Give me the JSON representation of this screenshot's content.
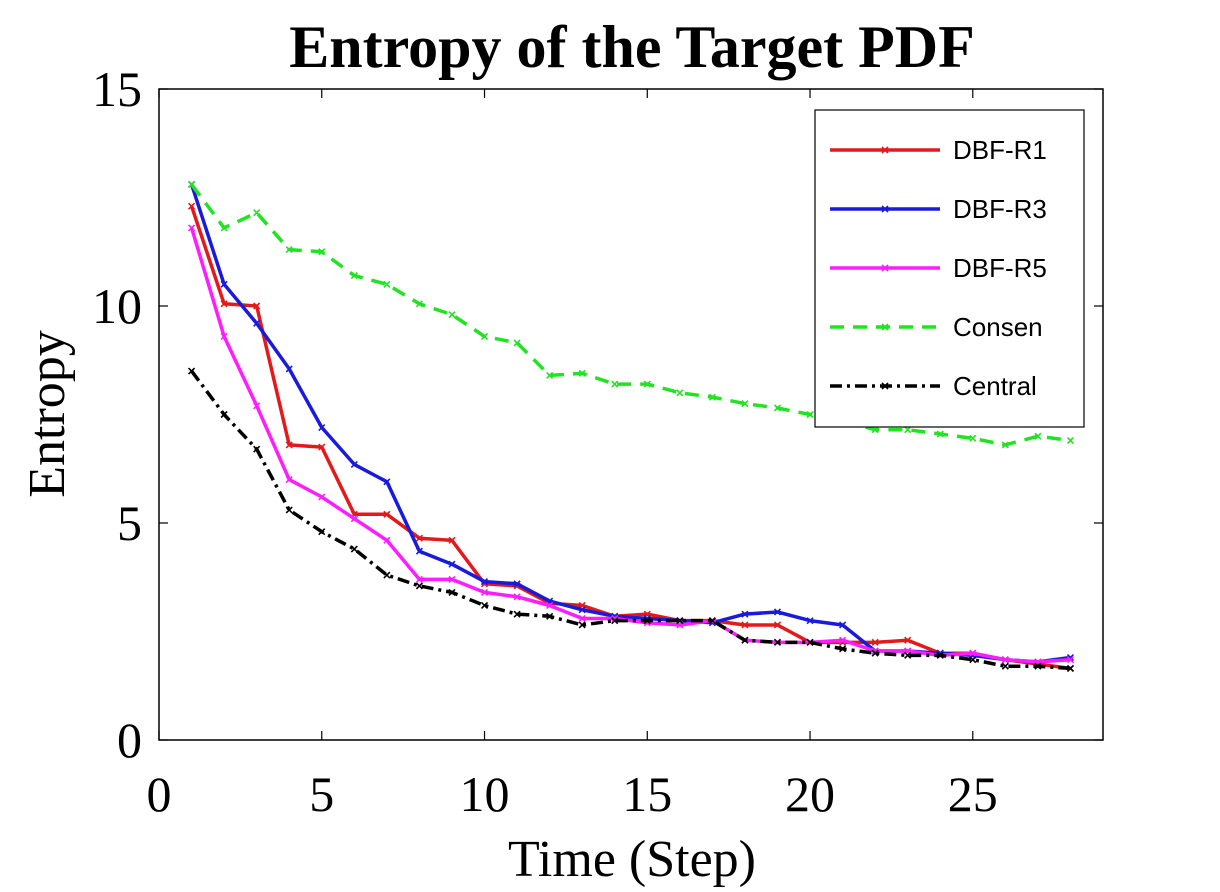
{
  "chart_data": {
    "type": "line",
    "title": "Entropy of the Target PDF",
    "xlabel": "Time (Step)",
    "ylabel": "Entropy",
    "xlim": [
      0,
      29
    ],
    "ylim": [
      0,
      15
    ],
    "xticks": [
      0,
      5,
      10,
      15,
      20,
      25
    ],
    "yticks": [
      0,
      5,
      10,
      15
    ],
    "grid": false,
    "legend_position": "top-right",
    "x": [
      1,
      2,
      3,
      4,
      5,
      6,
      7,
      8,
      9,
      10,
      11,
      12,
      13,
      14,
      15,
      16,
      17,
      18,
      19,
      20,
      21,
      22,
      23,
      24,
      25,
      26,
      27,
      28
    ],
    "series": [
      {
        "name": "DBF-R1",
        "color": "#e31a1c",
        "dash": "solid",
        "values": [
          12.3,
          10.05,
          10.0,
          6.8,
          6.75,
          5.2,
          5.2,
          4.65,
          4.6,
          3.6,
          3.55,
          3.15,
          3.1,
          2.85,
          2.9,
          2.75,
          2.75,
          2.65,
          2.65,
          2.25,
          2.25,
          2.25,
          2.3,
          2.0,
          2.0,
          1.85,
          1.75,
          1.65
        ]
      },
      {
        "name": "DBF-R3",
        "color": "#1a1adb",
        "dash": "solid",
        "values": [
          12.8,
          10.5,
          9.6,
          8.55,
          7.2,
          6.35,
          5.95,
          4.35,
          4.05,
          3.65,
          3.6,
          3.2,
          3.0,
          2.85,
          2.8,
          2.75,
          2.7,
          2.9,
          2.95,
          2.75,
          2.65,
          2.05,
          2.05,
          2.0,
          1.95,
          1.85,
          1.8,
          1.9
        ]
      },
      {
        "name": "DBF-R5",
        "color": "#ff1dff",
        "dash": "solid",
        "values": [
          11.8,
          9.3,
          7.7,
          6.0,
          5.6,
          5.1,
          4.6,
          3.7,
          3.7,
          3.4,
          3.3,
          3.1,
          2.8,
          2.8,
          2.7,
          2.65,
          2.75,
          2.3,
          2.25,
          2.25,
          2.3,
          2.05,
          2.05,
          1.95,
          2.0,
          1.85,
          1.8,
          1.85
        ]
      },
      {
        "name": "Consen",
        "color": "#22e322",
        "dash": "dashed",
        "values": [
          12.8,
          11.8,
          12.15,
          11.3,
          11.25,
          10.7,
          10.5,
          10.05,
          9.8,
          9.3,
          9.15,
          8.4,
          8.45,
          8.2,
          8.2,
          8.0,
          7.9,
          7.75,
          7.65,
          7.5,
          7.35,
          7.15,
          7.15,
          7.05,
          6.95,
          6.8,
          7.0,
          6.9
        ]
      },
      {
        "name": "Central",
        "color": "#000000",
        "dash": "dashdot",
        "values": [
          8.5,
          7.5,
          6.7,
          5.3,
          4.8,
          4.4,
          3.8,
          3.55,
          3.4,
          3.1,
          2.9,
          2.85,
          2.65,
          2.75,
          2.75,
          2.75,
          2.75,
          2.3,
          2.25,
          2.25,
          2.1,
          2.0,
          1.95,
          1.95,
          1.85,
          1.7,
          1.7,
          1.65
        ]
      }
    ]
  }
}
